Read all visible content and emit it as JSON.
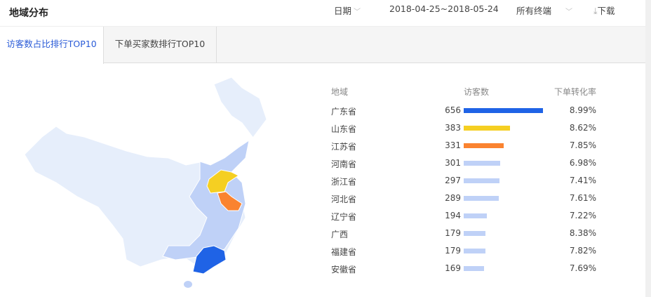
{
  "header": {
    "title": "地域分布",
    "date_label": "日期",
    "date_range": "2018-04-25~2018-05-24",
    "terminal": "所有终端",
    "download": "下载"
  },
  "tabs": [
    {
      "label": "访客数占比排行TOP10",
      "active": true
    },
    {
      "label": "下单买家数排行TOP10",
      "active": false
    }
  ],
  "table": {
    "columns": [
      "地域",
      "访客数",
      "下单转化率"
    ],
    "rows": [
      {
        "region": "广东省",
        "visitors": 656,
        "rate": "8.99%",
        "color": "#1f63e6"
      },
      {
        "region": "山东省",
        "visitors": 383,
        "rate": "8.62%",
        "color": "#f5cf22"
      },
      {
        "region": "江苏省",
        "visitors": 331,
        "rate": "7.85%",
        "color": "#fa8330"
      },
      {
        "region": "河南省",
        "visitors": 301,
        "rate": "6.98%",
        "color": "#bfd1f7"
      },
      {
        "region": "浙江省",
        "visitors": 297,
        "rate": "7.41%",
        "color": "#bfd1f7"
      },
      {
        "region": "河北省",
        "visitors": 289,
        "rate": "7.61%",
        "color": "#bfd1f7"
      },
      {
        "region": "辽宁省",
        "visitors": 194,
        "rate": "7.22%",
        "color": "#bfd1f7"
      },
      {
        "region": "广西",
        "visitors": 179,
        "rate": "8.38%",
        "color": "#bfd1f7"
      },
      {
        "region": "福建省",
        "visitors": 179,
        "rate": "7.82%",
        "color": "#bfd1f7"
      },
      {
        "region": "安徽省",
        "visitors": 169,
        "rate": "7.69%",
        "color": "#bfd1f7"
      }
    ]
  },
  "map": {
    "base_color": "#e6eefb",
    "highlight_colors": {
      "广东省": "#1f63e6",
      "山东省": "#f5cf22",
      "江苏省": "#fa8330"
    }
  }
}
